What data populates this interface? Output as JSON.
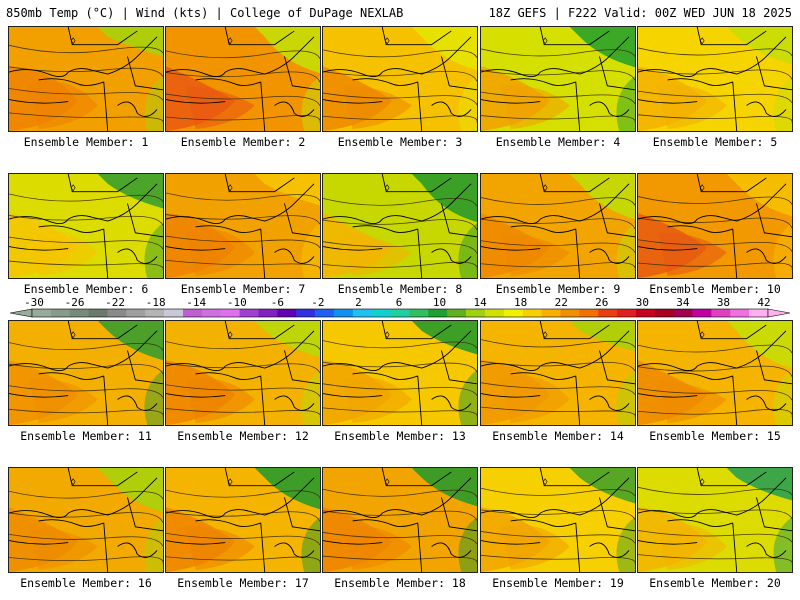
{
  "header": {
    "left": "850mb Temp (°C) | Wind (kts) | College of DuPage NEXLAB",
    "right": "18Z GEFS | F222 Valid: 00Z WED JUN 18 2025"
  },
  "members": [
    {
      "label": "Ensemble Member: 1",
      "fill": "#f2a000",
      "warm": "#ee8200",
      "cool": "#a8d20a"
    },
    {
      "label": "Ensemble Member: 2",
      "fill": "#f29400",
      "warm": "#ea5a12",
      "cool": "#c6de04"
    },
    {
      "label": "Ensemble Member: 3",
      "fill": "#f6c200",
      "warm": "#ee8a00",
      "cool": "#e6e400"
    },
    {
      "label": "Ensemble Member: 4",
      "fill": "#d6e000",
      "warm": "#f2a000",
      "cool": "#2aa22a"
    },
    {
      "label": "Ensemble Member: 5",
      "fill": "#f6d400",
      "warm": "#f4b000",
      "cool": "#c6de04"
    },
    {
      "label": "Ensemble Member: 6",
      "fill": "#dcdc00",
      "warm": "#f6c400",
      "cool": "#3a9e2e"
    },
    {
      "label": "Ensemble Member: 7",
      "fill": "#f2a200",
      "warm": "#ee8200",
      "cool": "#f6c400"
    },
    {
      "label": "Ensemble Member: 8",
      "fill": "#c6d800",
      "warm": "#f4b400",
      "cool": "#2a9a2a"
    },
    {
      "label": "Ensemble Member: 9",
      "fill": "#f2a400",
      "warm": "#ee8800",
      "cool": "#c2dc06"
    },
    {
      "label": "Ensemble Member: 10",
      "fill": "#f29800",
      "warm": "#e85a12",
      "cool": "#f6c000"
    },
    {
      "label": "Ensemble Member: 11",
      "fill": "#f4b000",
      "warm": "#f09000",
      "cool": "#3a9e2e"
    },
    {
      "label": "Ensemble Member: 12",
      "fill": "#f4b200",
      "warm": "#ee8400",
      "cool": "#b8d808"
    },
    {
      "label": "Ensemble Member: 13",
      "fill": "#f6c800",
      "warm": "#f2a400",
      "cool": "#2a9a2a"
    },
    {
      "label": "Ensemble Member: 14",
      "fill": "#f4b400",
      "warm": "#f09800",
      "cool": "#a8d20a"
    },
    {
      "label": "Ensemble Member: 15",
      "fill": "#f4b400",
      "warm": "#ee8a00",
      "cool": "#c6de04"
    },
    {
      "label": "Ensemble Member: 16",
      "fill": "#f2aa00",
      "warm": "#ee8c00",
      "cool": "#a8d20a"
    },
    {
      "label": "Ensemble Member: 17",
      "fill": "#f4b400",
      "warm": "#ee8400",
      "cool": "#2a9a2a"
    },
    {
      "label": "Ensemble Member: 18",
      "fill": "#f2a400",
      "warm": "#ee8600",
      "cool": "#2a9a2a"
    },
    {
      "label": "Ensemble Member: 19",
      "fill": "#f6d000",
      "warm": "#f2a400",
      "cool": "#46a228"
    },
    {
      "label": "Ensemble Member: 20",
      "fill": "#dcdc00",
      "warm": "#f4b400",
      "cool": "#2aa050"
    }
  ],
  "colorbar": {
    "labels": [
      "-30",
      "-26",
      "-22",
      "-18",
      "-14",
      "-10",
      "-6",
      "-2",
      "2",
      "6",
      "10",
      "14",
      "18",
      "22",
      "26",
      "30",
      "34",
      "38",
      "42"
    ],
    "colors": [
      "#9aaa9a",
      "#8a9a8a",
      "#7a8a7a",
      "#6a7a6a",
      "#8a8a8a",
      "#a0a0a0",
      "#b4b4b4",
      "#c8c8d8",
      "#c060d0",
      "#d070e0",
      "#e070f0",
      "#a040d0",
      "#8020c0",
      "#6000b0",
      "#3030e0",
      "#2060f0",
      "#1090f0",
      "#20c0f0",
      "#10d0d0",
      "#20d0a0",
      "#30c060",
      "#20a030",
      "#60b020",
      "#a0d010",
      "#d0e000",
      "#f0f000",
      "#f8d000",
      "#f8b000",
      "#f09000",
      "#f07000",
      "#e84010",
      "#e02020",
      "#c80020",
      "#a80020",
      "#a00050",
      "#c000a0",
      "#e040c0",
      "#f070e0",
      "#ffb0f0"
    ]
  }
}
